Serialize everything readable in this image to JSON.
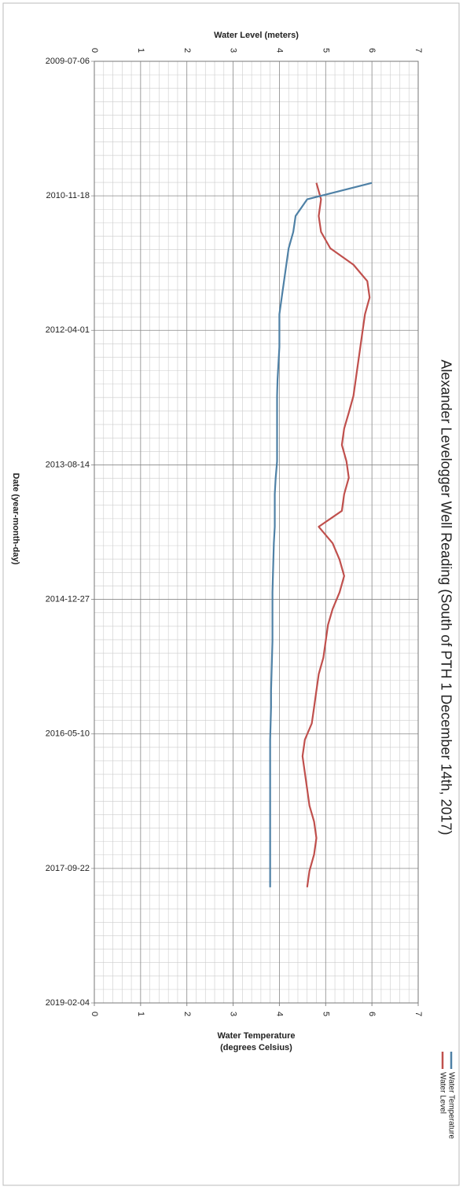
{
  "chart_data": {
    "type": "line",
    "title": "Alexander Levelogger Well Reading (South of PTH 1 December 14th, 2017)",
    "x_label": "Date (year-month-day)",
    "y_label": "Water Level (meters)",
    "y2_label": [
      "Water Temperature",
      "(degrees Celsius)"
    ],
    "xlim": [
      "2009-07-06",
      "2019-02-04"
    ],
    "xticks": [
      "2009-07-06",
      "2010-11-18",
      "2012-04-01",
      "2013-08-14",
      "2014-12-27",
      "2016-05-10",
      "2017-09-22",
      "2019-02-04"
    ],
    "ylim": [
      0,
      7
    ],
    "yticks": [
      0,
      1,
      2,
      3,
      4,
      5,
      6,
      7
    ],
    "y2lim": [
      0,
      7
    ],
    "y2ticks": [
      0,
      1,
      2,
      3,
      4,
      5,
      6,
      7
    ],
    "grid": true,
    "legend": "bottom-right",
    "x": [
      "2010-10-01",
      "2010-12-01",
      "2011-02-01",
      "2011-04-01",
      "2011-06-01",
      "2011-08-01",
      "2011-10-01",
      "2011-12-01",
      "2012-02-01",
      "2012-04-01",
      "2012-06-01",
      "2012-08-01",
      "2012-10-01",
      "2012-12-01",
      "2013-02-01",
      "2013-04-01",
      "2013-06-01",
      "2013-08-01",
      "2013-10-01",
      "2013-12-01",
      "2014-02-01",
      "2014-04-01",
      "2014-06-01",
      "2014-08-01",
      "2014-10-01",
      "2014-12-01",
      "2015-02-01",
      "2015-04-01",
      "2015-06-01",
      "2015-08-01",
      "2015-10-01",
      "2015-12-01",
      "2016-02-01",
      "2016-04-01",
      "2016-06-01",
      "2016-08-01",
      "2016-10-01",
      "2016-12-01",
      "2017-02-01",
      "2017-04-01",
      "2017-06-01",
      "2017-08-01",
      "2017-10-01",
      "2017-12-01"
    ],
    "series": [
      {
        "name": "Water Level",
        "color": "#c0504d",
        "values": [
          4.8,
          4.9,
          4.85,
          4.9,
          5.1,
          5.6,
          5.9,
          5.95,
          5.85,
          5.8,
          5.75,
          5.7,
          5.65,
          5.6,
          5.5,
          5.4,
          5.35,
          5.45,
          5.5,
          5.4,
          5.35,
          4.85,
          5.15,
          5.3,
          5.4,
          5.3,
          5.15,
          5.05,
          5.0,
          4.95,
          4.85,
          4.8,
          4.75,
          4.7,
          4.55,
          4.5,
          4.55,
          4.6,
          4.65,
          4.75,
          4.8,
          4.75,
          4.65,
          4.6
        ]
      },
      {
        "name": "Water Temperature",
        "color": "#4f81a6",
        "axis": "y2",
        "values": [
          6.0,
          4.6,
          4.35,
          4.3,
          4.2,
          4.15,
          4.1,
          4.05,
          4.0,
          4.0,
          4.0,
          3.98,
          3.96,
          3.95,
          3.95,
          3.95,
          3.95,
          3.95,
          3.92,
          3.9,
          3.9,
          3.9,
          3.88,
          3.87,
          3.86,
          3.85,
          3.85,
          3.85,
          3.85,
          3.84,
          3.83,
          3.82,
          3.82,
          3.81,
          3.8,
          3.8,
          3.8,
          3.8,
          3.8,
          3.8,
          3.8,
          3.8,
          3.8,
          3.8
        ]
      }
    ]
  }
}
